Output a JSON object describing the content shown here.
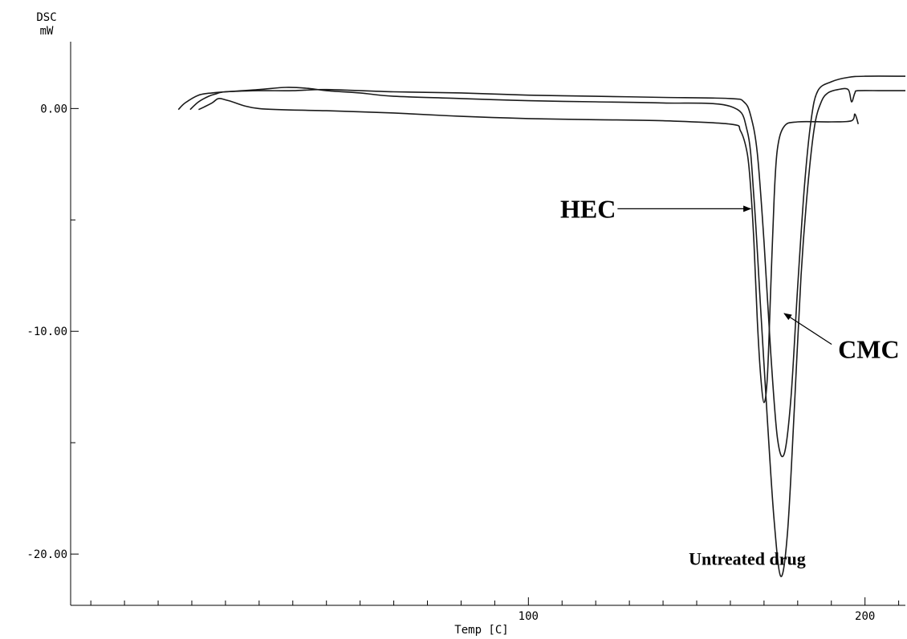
{
  "chart_data": {
    "type": "line",
    "ylabel_line1": "DSC",
    "ylabel_line2": "mW",
    "xlabel": "Temp [C]",
    "xlim": [
      -36,
      212
    ],
    "ylim": [
      -22.3,
      3.0
    ],
    "xticks": [
      100,
      200
    ],
    "xtick_labels": [
      "100",
      "200"
    ],
    "yticks": [
      0,
      -10,
      -20
    ],
    "ytick_labels": [
      "0.00",
      "-10.00",
      "-20.00"
    ],
    "grid": false,
    "series": [
      {
        "name": "HEC",
        "x": [
          2,
          6,
          8,
          11,
          20,
          40,
          60,
          80,
          100,
          120,
          140,
          160,
          163,
          165,
          166,
          167,
          168,
          169,
          170,
          171,
          172,
          173,
          174,
          176,
          180,
          190,
          196,
          197,
          198
        ],
        "y": [
          -0.05,
          0.25,
          0.45,
          0.35,
          0.0,
          -0.1,
          -0.2,
          -0.35,
          -0.45,
          -0.5,
          -0.55,
          -0.7,
          -1.0,
          -2.0,
          -3.5,
          -6.0,
          -9.5,
          -12.0,
          -13.2,
          -12.0,
          -8.0,
          -4.0,
          -1.8,
          -0.8,
          -0.6,
          -0.6,
          -0.55,
          -0.25,
          -0.7
        ]
      },
      {
        "name": "CMC",
        "x": [
          -0.5,
          2,
          5,
          7,
          10,
          20,
          30,
          40,
          60,
          80,
          100,
          120,
          140,
          160,
          164,
          166,
          168,
          170,
          172,
          174,
          176,
          178,
          180,
          182,
          184,
          186,
          190,
          195,
          200,
          212
        ],
        "y": [
          -0.05,
          0.3,
          0.55,
          0.65,
          0.75,
          0.8,
          0.8,
          0.85,
          0.75,
          0.7,
          0.6,
          0.55,
          0.5,
          0.45,
          0.3,
          -0.3,
          -2.0,
          -6.0,
          -11.0,
          -14.8,
          -15.5,
          -13.0,
          -8.0,
          -3.5,
          -0.5,
          0.8,
          1.2,
          1.4,
          1.45,
          1.45
        ]
      },
      {
        "name": "Untreated drug",
        "x": [
          -4,
          -2,
          2,
          6,
          10,
          20,
          28,
          35,
          40,
          50,
          60,
          80,
          100,
          120,
          140,
          160,
          165,
          167,
          169,
          171,
          173,
          175,
          177,
          179,
          181,
          183,
          185,
          187,
          189,
          192,
          195,
          196,
          197,
          198,
          205,
          212
        ],
        "y": [
          -0.05,
          0.25,
          0.6,
          0.7,
          0.75,
          0.85,
          0.95,
          0.9,
          0.8,
          0.7,
          0.55,
          0.45,
          0.35,
          0.3,
          0.25,
          0.1,
          -1.0,
          -4.0,
          -9.0,
          -14.0,
          -18.5,
          -21.0,
          -19.0,
          -13.5,
          -7.5,
          -3.5,
          -0.8,
          0.3,
          0.7,
          0.85,
          0.85,
          0.3,
          0.7,
          0.8,
          0.8,
          0.8
        ]
      }
    ],
    "annotations": [
      {
        "text": "HEC",
        "size": "large",
        "arrow_to": [
          166,
          -4.5
        ],
        "label_at": [
          126,
          -4.5
        ],
        "label_anchor": "end"
      },
      {
        "text": "CMC",
        "size": "large",
        "arrow_to": [
          176,
          -9.2
        ],
        "label_at": [
          192,
          -10.8
        ],
        "label_anchor": "start"
      },
      {
        "text": "Untreated drug",
        "size": "medium",
        "label_at": [
          165,
          -20.2
        ],
        "label_anchor": "middle"
      }
    ]
  }
}
